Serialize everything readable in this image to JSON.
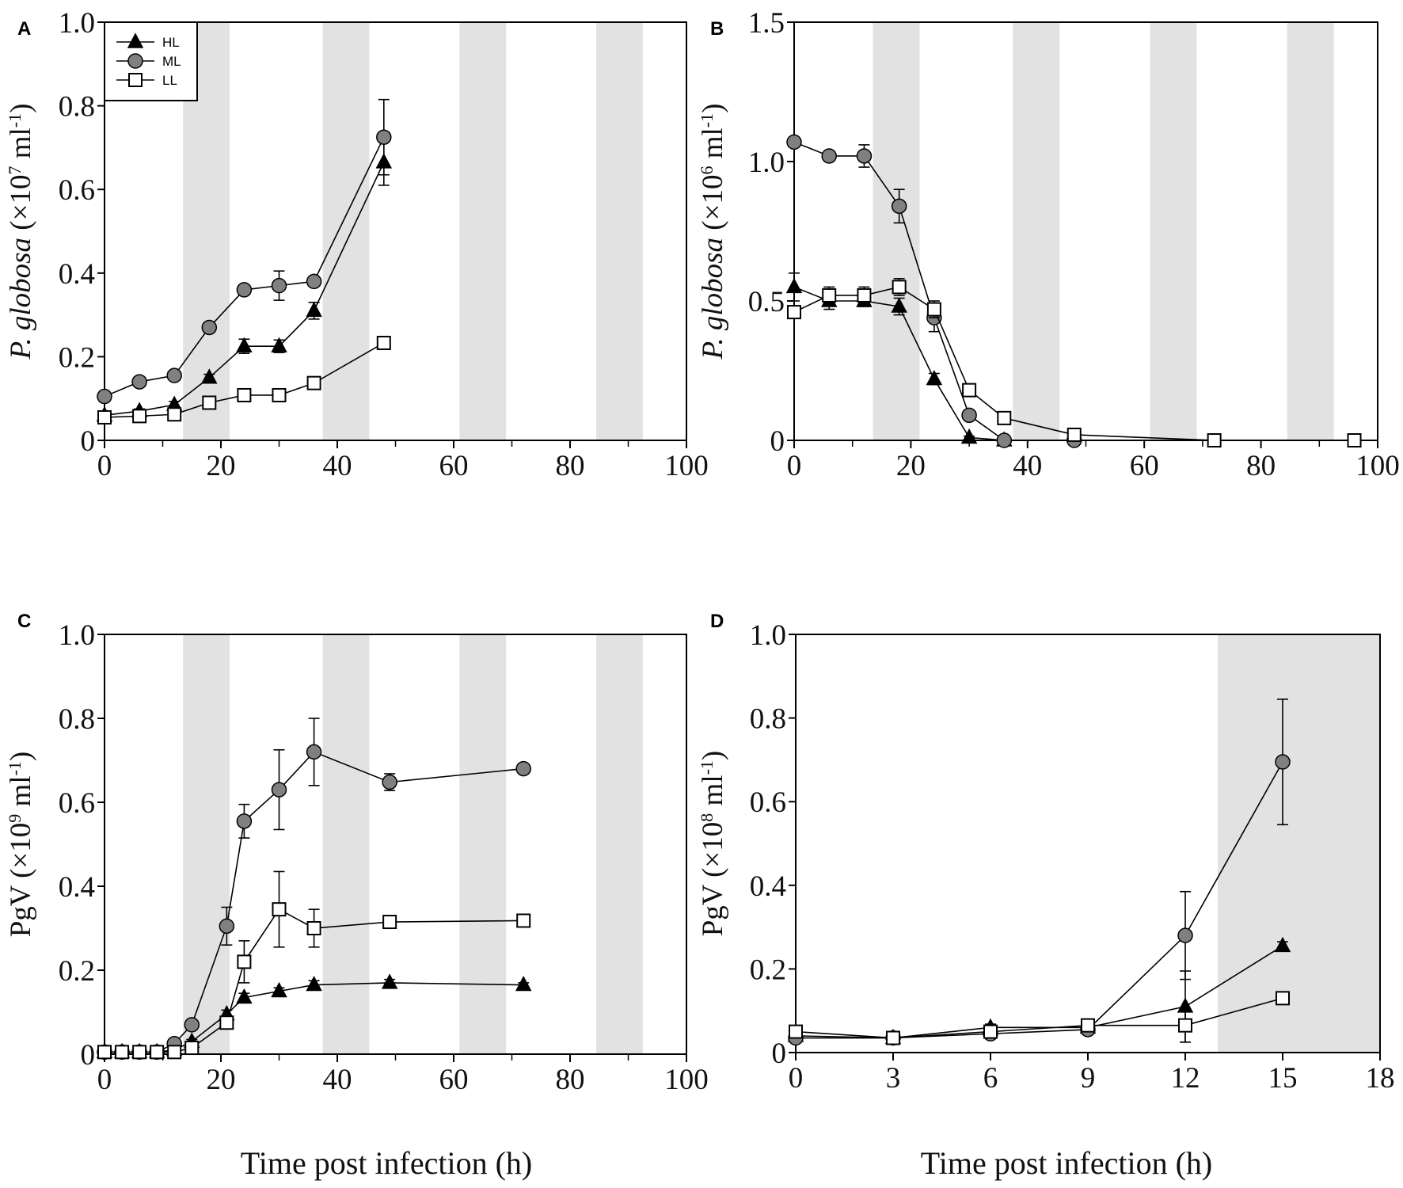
{
  "chart_data": [
    {
      "panel": "A",
      "type": "line",
      "ylabel": {
        "italic": "P. globosa",
        "pre": " (×10",
        "exp": "7",
        "mid": " ml",
        "exp2": "-1",
        "post": ")"
      },
      "xlabel": "",
      "xlim": [
        0,
        100
      ],
      "xticks": [
        0,
        20,
        40,
        60,
        80,
        100
      ],
      "xminor": 10,
      "ylim": [
        0,
        1.0
      ],
      "yticks": [
        0,
        0.2,
        0.4,
        0.6,
        0.8,
        1.0
      ],
      "ytick_labels": [
        "0",
        "0.2",
        "0.4",
        "0.6",
        "0.8",
        "1.0"
      ],
      "dark_periods": [
        [
          13.5,
          21.5
        ],
        [
          37.5,
          45.5
        ],
        [
          61,
          69
        ],
        [
          84.5,
          92.5
        ]
      ],
      "legend": {
        "position": "top-left",
        "entries": [
          "HL",
          "ML",
          "LL"
        ]
      },
      "series": [
        {
          "name": "HL",
          "marker": "triangle",
          "x": [
            0,
            6,
            12,
            18,
            24,
            30,
            36,
            48
          ],
          "y": [
            0.06,
            0.07,
            0.085,
            0.15,
            0.225,
            0.225,
            0.31,
            0.665
          ],
          "err": [
            0.005,
            0.005,
            0.008,
            0.008,
            0.017,
            0.015,
            0.02,
            0.055
          ]
        },
        {
          "name": "ML",
          "marker": "circle",
          "x": [
            0,
            6,
            12,
            18,
            24,
            30,
            36,
            48
          ],
          "y": [
            0.105,
            0.14,
            0.155,
            0.27,
            0.36,
            0.37,
            0.38,
            0.725
          ],
          "err": [
            0.006,
            0.006,
            0.008,
            0.008,
            0.01,
            0.035,
            0.01,
            0.09
          ]
        },
        {
          "name": "LL",
          "marker": "square",
          "x": [
            0,
            6,
            12,
            18,
            24,
            30,
            36,
            48
          ],
          "y": [
            0.055,
            0.058,
            0.062,
            0.09,
            0.108,
            0.108,
            0.137,
            0.233
          ],
          "err": [
            0.004,
            0.004,
            0.004,
            0.005,
            0.005,
            0.005,
            0.005,
            0.006
          ]
        }
      ]
    },
    {
      "panel": "B",
      "type": "line",
      "ylabel": {
        "italic": "P. globosa",
        "pre": " (×10",
        "exp": "6",
        "mid": " ml",
        "exp2": "-1",
        "post": ")"
      },
      "xlabel": "",
      "xlim": [
        0,
        100
      ],
      "xticks": [
        0,
        20,
        40,
        60,
        80,
        100
      ],
      "xminor": 10,
      "ylim": [
        0,
        1.5
      ],
      "yticks": [
        0,
        0.5,
        1.0,
        1.5
      ],
      "ytick_labels": [
        "0",
        "0.5",
        "1.0",
        "1.5"
      ],
      "dark_periods": [
        [
          13.5,
          21.5
        ],
        [
          37.5,
          45.5
        ],
        [
          61,
          69
        ],
        [
          84.5,
          92.5
        ]
      ],
      "series": [
        {
          "name": "HL",
          "marker": "triangle",
          "x": [
            0,
            6,
            12,
            18,
            24,
            30,
            36
          ],
          "y": [
            0.55,
            0.5,
            0.5,
            0.48,
            0.22,
            0.01,
            0.0
          ],
          "err": [
            0.05,
            0.03,
            0.02,
            0.03,
            0.02,
            0.005,
            0
          ]
        },
        {
          "name": "ML",
          "marker": "circle",
          "x": [
            0,
            6,
            12,
            18,
            24,
            30,
            36,
            48
          ],
          "y": [
            1.07,
            1.02,
            1.02,
            0.84,
            0.44,
            0.09,
            0.0,
            0.0
          ],
          "err": [
            0.01,
            0.015,
            0.04,
            0.06,
            0.05,
            0.01,
            0,
            0
          ]
        },
        {
          "name": "LL",
          "marker": "square",
          "x": [
            0,
            6,
            12,
            18,
            24,
            30,
            36,
            48,
            72,
            96
          ],
          "y": [
            0.46,
            0.52,
            0.52,
            0.55,
            0.47,
            0.18,
            0.08,
            0.02,
            0.0,
            0.0
          ],
          "err": [
            0.01,
            0.03,
            0.03,
            0.03,
            0.03,
            0.02,
            0.01,
            0.005,
            0,
            0
          ]
        }
      ]
    },
    {
      "panel": "C",
      "type": "line",
      "ylabel": {
        "italic": "",
        "pre": "PgV (×10",
        "exp": "9",
        "mid": " ml",
        "exp2": "-1",
        "post": ")"
      },
      "xlabel": "Time post infection (h)",
      "xlim": [
        0,
        100
      ],
      "xticks": [
        0,
        20,
        40,
        60,
        80,
        100
      ],
      "xminor": 10,
      "ylim": [
        0,
        1.0
      ],
      "yticks": [
        0,
        0.2,
        0.4,
        0.6,
        0.8,
        1.0
      ],
      "ytick_labels": [
        "0",
        "0.2",
        "0.4",
        "0.6",
        "0.8",
        "1.0"
      ],
      "dark_periods": [
        [
          13.5,
          21.5
        ],
        [
          37.5,
          45.5
        ],
        [
          61,
          69
        ],
        [
          84.5,
          92.5
        ]
      ],
      "series": [
        {
          "name": "HL",
          "marker": "triangle",
          "x": [
            0,
            3,
            6,
            9,
            12,
            15,
            21,
            24,
            30,
            36,
            49,
            72
          ],
          "y": [
            0.005,
            0.005,
            0.005,
            0.005,
            0.01,
            0.03,
            0.095,
            0.135,
            0.15,
            0.165,
            0.17,
            0.165
          ],
          "err": [
            0,
            0,
            0,
            0,
            0,
            0.005,
            0.01,
            0.01,
            0.008,
            0.01,
            0.008,
            0.005
          ]
        },
        {
          "name": "ML",
          "marker": "circle",
          "x": [
            0,
            3,
            6,
            9,
            12,
            15,
            21,
            24,
            30,
            36,
            49,
            72
          ],
          "y": [
            0.005,
            0.005,
            0.005,
            0.005,
            0.025,
            0.07,
            0.305,
            0.555,
            0.63,
            0.72,
            0.648,
            0.68
          ],
          "err": [
            0,
            0,
            0,
            0,
            0.005,
            0.01,
            0.045,
            0.04,
            0.095,
            0.08,
            0.02,
            0.005
          ]
        },
        {
          "name": "LL",
          "marker": "square",
          "x": [
            0,
            3,
            6,
            9,
            12,
            15,
            21,
            24,
            30,
            36,
            49,
            72
          ],
          "y": [
            0.005,
            0.005,
            0.005,
            0.005,
            0.005,
            0.015,
            0.075,
            0.22,
            0.345,
            0.3,
            0.315,
            0.318
          ],
          "err": [
            0,
            0,
            0,
            0,
            0,
            0.005,
            0.005,
            0.05,
            0.09,
            0.045,
            0.005,
            0.003
          ]
        }
      ]
    },
    {
      "panel": "D",
      "type": "line",
      "ylabel": {
        "italic": "",
        "pre": "PgV (×10",
        "exp": "8",
        "mid": " ml",
        "exp2": "-1",
        "post": ")"
      },
      "xlabel": "Time post infection (h)",
      "xlim": [
        0,
        18
      ],
      "xticks": [
        0,
        3,
        6,
        9,
        12,
        15,
        18
      ],
      "xminor": 0,
      "ylim": [
        0,
        1.0
      ],
      "yticks": [
        0,
        0.2,
        0.4,
        0.6,
        0.8,
        1.0
      ],
      "ytick_labels": [
        "0",
        "0.2",
        "0.4",
        "0.6",
        "0.8",
        "1.0"
      ],
      "dark_periods": [
        [
          13,
          18
        ]
      ],
      "series": [
        {
          "name": "HL",
          "marker": "triangle",
          "x": [
            0,
            3,
            6,
            9,
            12,
            15
          ],
          "y": [
            0.04,
            0.035,
            0.06,
            0.06,
            0.11,
            0.255
          ],
          "err": [
            0.003,
            0.003,
            0.008,
            0.005,
            0.085,
            0.01
          ]
        },
        {
          "name": "ML",
          "marker": "circle",
          "x": [
            0,
            3,
            6,
            9,
            12,
            15
          ],
          "y": [
            0.035,
            0.035,
            0.045,
            0.055,
            0.28,
            0.695
          ],
          "err": [
            0.003,
            0.003,
            0.005,
            0.005,
            0.105,
            0.15
          ]
        },
        {
          "name": "LL",
          "marker": "square",
          "x": [
            0,
            3,
            6,
            9,
            12,
            15
          ],
          "y": [
            0.05,
            0.035,
            0.05,
            0.065,
            0.065,
            0.13
          ],
          "err": [
            0.003,
            0.003,
            0.005,
            0.005,
            0.04,
            0.005
          ]
        }
      ]
    }
  ],
  "colors": {
    "HL": "#000000",
    "ML": "#808080",
    "LL": "#ffffff",
    "dark_period": "#e2e2e2",
    "axis": "#000000"
  }
}
